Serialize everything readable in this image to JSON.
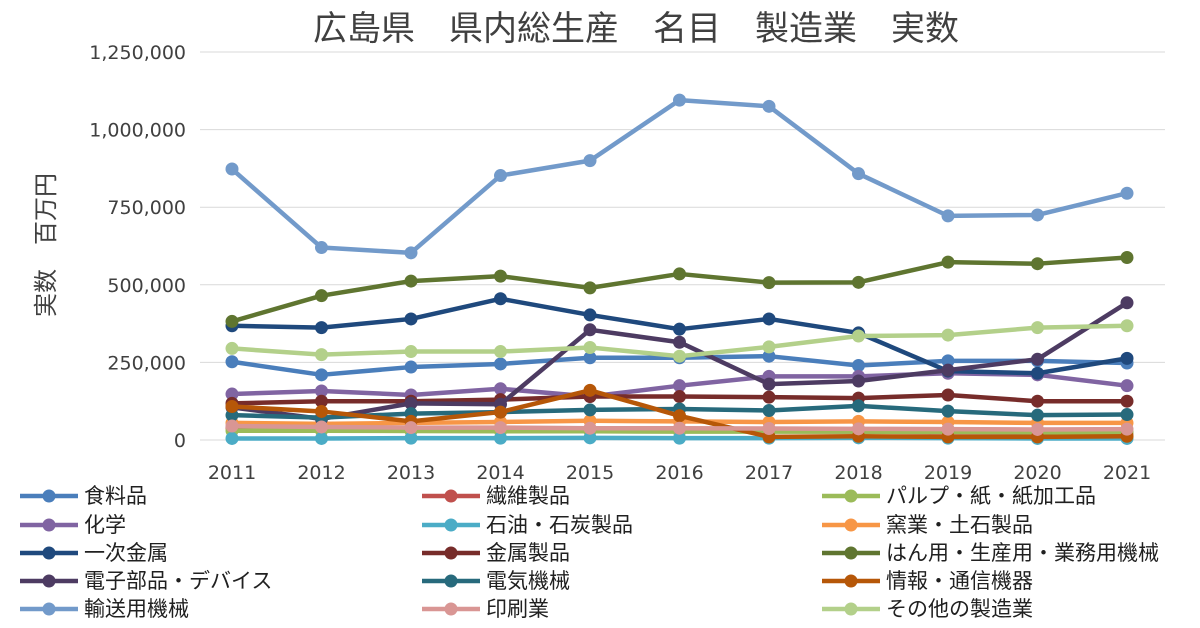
{
  "chart_data": {
    "type": "line",
    "title": "広島県　県内総生産　名目　製造業　実数",
    "xlabel": "",
    "ylabel": "実数　百万円",
    "ylim": [
      0,
      1250000
    ],
    "yticks": [
      0,
      250000,
      500000,
      750000,
      1000000,
      1250000
    ],
    "ytick_labels": [
      "0",
      "250,000",
      "500,000",
      "750,000",
      "1,000,000",
      "1,250,000"
    ],
    "x": [
      "2011",
      "2012",
      "2013",
      "2014",
      "2015",
      "2016",
      "2017",
      "2018",
      "2019",
      "2020",
      "2021"
    ],
    "grid": true,
    "legend_position": "bottom",
    "series": [
      {
        "name": "食料品",
        "color": "#4a7ebb",
        "values": [
          252000,
          210000,
          235000,
          245000,
          265000,
          265000,
          270000,
          240000,
          255000,
          255000,
          248000
        ]
      },
      {
        "name": "繊維製品",
        "color": "#c0504d",
        "values": [
          40000,
          38000,
          35000,
          33000,
          32000,
          30000,
          28000,
          27000,
          25000,
          23000,
          22000
        ]
      },
      {
        "name": "パルプ・紙・紙加工品",
        "color": "#9bbb59",
        "values": [
          30000,
          30000,
          29000,
          28000,
          28000,
          27000,
          27000,
          27000,
          26000,
          25000,
          25000
        ]
      },
      {
        "name": "化学",
        "color": "#8064a2",
        "values": [
          148000,
          158000,
          145000,
          165000,
          140000,
          175000,
          205000,
          205000,
          215000,
          210000,
          175000
        ]
      },
      {
        "name": "石油・石炭製品",
        "color": "#4bacc6",
        "values": [
          5000,
          5000,
          6000,
          6000,
          7000,
          6000,
          6000,
          7000,
          6000,
          5000,
          5000
        ]
      },
      {
        "name": "窯業・土石製品",
        "color": "#f79646",
        "values": [
          55000,
          52000,
          55000,
          58000,
          62000,
          60000,
          58000,
          60000,
          58000,
          55000,
          55000
        ]
      },
      {
        "name": "一次金属",
        "color": "#1f497d",
        "values": [
          368000,
          362000,
          390000,
          455000,
          403000,
          357000,
          390000,
          345000,
          222000,
          215000,
          263000
        ]
      },
      {
        "name": "金属製品",
        "color": "#772c2a",
        "values": [
          118000,
          125000,
          125000,
          130000,
          140000,
          140000,
          138000,
          135000,
          145000,
          125000,
          125000
        ]
      },
      {
        "name": "はん用・生産用・業務用機械",
        "color": "#5f7530",
        "values": [
          382000,
          465000,
          512000,
          528000,
          490000,
          535000,
          507000,
          508000,
          573000,
          568000,
          588000
        ]
      },
      {
        "name": "電子部品・デバイス",
        "color": "#4d3b62",
        "values": [
          105000,
          68000,
          118000,
          115000,
          355000,
          315000,
          180000,
          190000,
          225000,
          260000,
          442000
        ]
      },
      {
        "name": "電気機械",
        "color": "#276a7c",
        "values": [
          80000,
          72000,
          85000,
          90000,
          97000,
          100000,
          95000,
          110000,
          93000,
          80000,
          82000
        ]
      },
      {
        "name": "情報・通信機器",
        "color": "#b65708",
        "values": [
          108000,
          92000,
          60000,
          90000,
          160000,
          78000,
          10000,
          12000,
          10000,
          10000,
          12000
        ]
      },
      {
        "name": "輸送用機械",
        "color": "#729aca",
        "values": [
          873000,
          620000,
          603000,
          852000,
          900000,
          1095000,
          1075000,
          858000,
          722000,
          725000,
          795000
        ]
      },
      {
        "name": "印刷業",
        "color": "#d99694",
        "values": [
          45000,
          42000,
          40000,
          40000,
          38000,
          38000,
          37000,
          36000,
          35000,
          34000,
          35000
        ]
      },
      {
        "name": "その他の製造業",
        "color": "#b3d08a",
        "values": [
          295000,
          275000,
          285000,
          285000,
          298000,
          270000,
          300000,
          335000,
          338000,
          362000,
          368000
        ]
      }
    ]
  }
}
